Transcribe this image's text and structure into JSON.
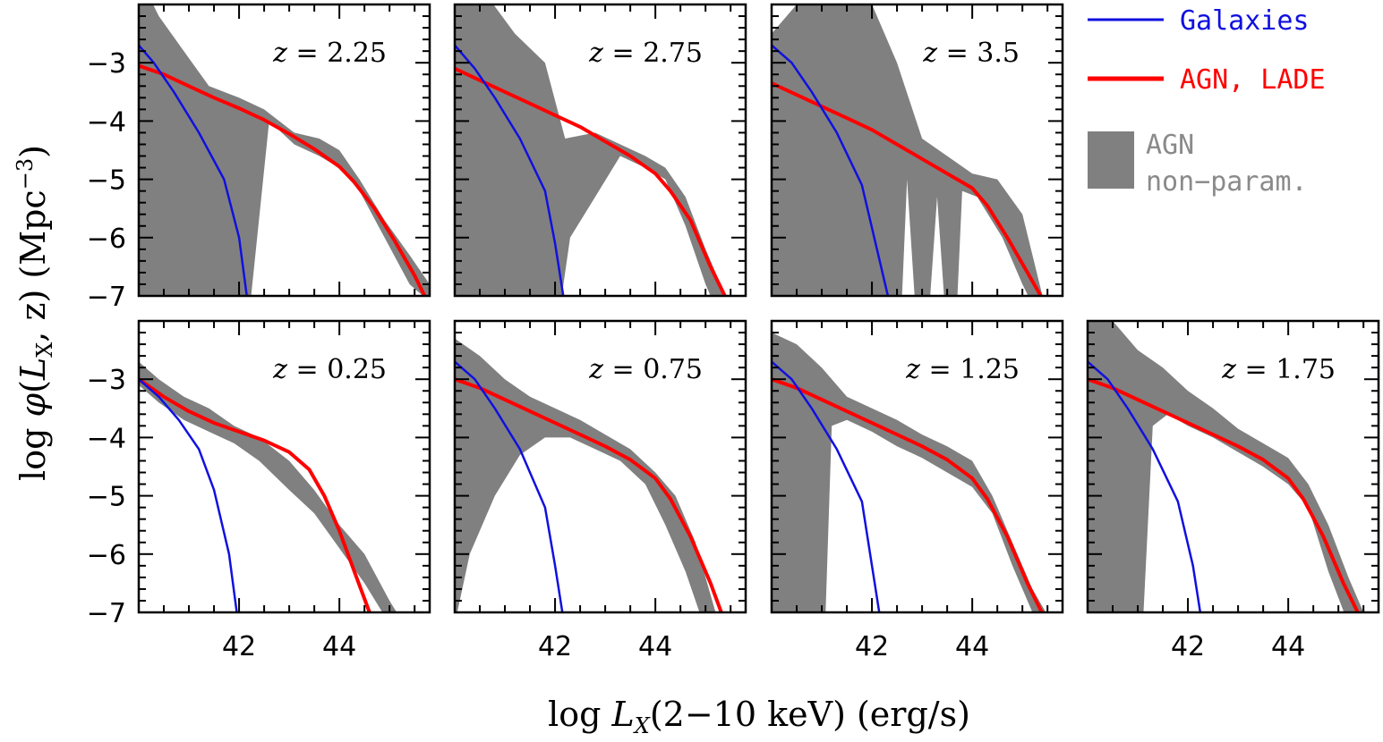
{
  "chart_data": {
    "type": "line",
    "xlabel": "log L_X(2−10 keV)  (erg/s)",
    "xlabel_parts": {
      "prefix": "log",
      "var": "L",
      "sub": "X",
      "rest": "(2−10 keV)  (erg/s)"
    },
    "ylabel": "log φ(L_X,  z)  (Mpc⁻³)",
    "ylabel_parts": {
      "prefix": "log",
      "phi": "φ",
      "open": "(",
      "var": "L",
      "sub": "X",
      "mid": ",  z)  (Mpc",
      "sup": "−3",
      "close": ")"
    },
    "xlim": [
      40.0,
      45.8
    ],
    "ylim": [
      -7,
      -2.0
    ],
    "x_ticks": [
      42,
      44
    ],
    "x_tick_labels": [
      "42",
      "44"
    ],
    "y_ticks": [
      -3,
      -4,
      -5,
      -6,
      -7
    ],
    "y_tick_labels": [
      "−3",
      "−4",
      "−5",
      "−6",
      "−7"
    ],
    "legend": [
      {
        "label": "Galaxies",
        "kind": "line",
        "color": "#1010e0"
      },
      {
        "label": "AGN, LADE",
        "kind": "line",
        "color": "#ff0000"
      },
      {
        "label_lines": [
          "AGN",
          "non−param."
        ],
        "kind": "band",
        "color": "#808080",
        "text_color": "#8a8a8a"
      }
    ],
    "panels": [
      {
        "z_label": "z = 2.25",
        "band_upper": {
          "x": [
            40.0,
            40.4,
            40.9,
            41.4,
            42.0,
            42.5,
            43.1,
            43.6,
            44.0,
            44.4,
            44.9,
            45.4,
            45.8
          ],
          "y": [
            -1.5,
            -2.2,
            -2.8,
            -3.4,
            -3.6,
            -3.8,
            -4.2,
            -4.3,
            -4.5,
            -5.0,
            -5.7,
            -6.3,
            -6.8
          ]
        },
        "band_lower": {
          "x": [
            40.0,
            40.4,
            40.9,
            41.4,
            42.0,
            42.6,
            43.1,
            43.6,
            44.0,
            44.4,
            44.9,
            45.4,
            45.8
          ],
          "y": [
            -9.0,
            -9.0,
            -9.0,
            -9.0,
            -9.0,
            -4.0,
            -4.4,
            -4.6,
            -4.8,
            -5.2,
            -6.0,
            -6.8,
            -7.1
          ]
        },
        "galaxies": {
          "x": [
            40.0,
            40.3,
            40.7,
            41.2,
            41.7,
            42.0,
            42.2
          ],
          "y": [
            -2.7,
            -3.0,
            -3.5,
            -4.2,
            -5.0,
            -6.0,
            -7.3
          ]
        },
        "agn_lade": {
          "x": [
            40.0,
            40.5,
            41.0,
            41.5,
            42.0,
            42.5,
            43.0,
            43.5,
            44.0,
            44.3,
            44.7,
            45.1,
            45.5,
            45.7
          ],
          "y": [
            -3.05,
            -3.2,
            -3.4,
            -3.6,
            -3.78,
            -3.98,
            -4.22,
            -4.48,
            -4.78,
            -5.05,
            -5.5,
            -6.05,
            -6.65,
            -7.0
          ]
        }
      },
      {
        "z_label": "z = 2.75",
        "band_upper": {
          "x": [
            40.0,
            40.6,
            41.2,
            41.8,
            42.2,
            42.8,
            43.3,
            43.8,
            44.2,
            44.6,
            45.0,
            45.4
          ],
          "y": [
            -1.0,
            -1.8,
            -2.5,
            -3.0,
            -4.3,
            -4.2,
            -4.4,
            -4.6,
            -4.8,
            -5.3,
            -6.2,
            -7.0
          ]
        },
        "band_lower": {
          "x": [
            40.0,
            40.6,
            41.2,
            41.8,
            42.3,
            42.8,
            43.3,
            43.8,
            44.2,
            44.6,
            45.0,
            45.4
          ],
          "y": [
            -9.0,
            -9.0,
            -9.0,
            -9.0,
            -6.0,
            -5.3,
            -4.6,
            -4.8,
            -5.0,
            -5.8,
            -6.8,
            -7.6
          ]
        },
        "galaxies": {
          "x": [
            40.0,
            40.4,
            40.8,
            41.3,
            41.8,
            42.0,
            42.2
          ],
          "y": [
            -2.7,
            -3.1,
            -3.6,
            -4.3,
            -5.2,
            -6.1,
            -7.2
          ]
        },
        "agn_lade": {
          "x": [
            40.0,
            40.5,
            41.0,
            41.5,
            42.0,
            42.5,
            43.0,
            43.5,
            44.0,
            44.3,
            44.7,
            45.1,
            45.5
          ],
          "y": [
            -3.1,
            -3.3,
            -3.5,
            -3.7,
            -3.9,
            -4.1,
            -4.35,
            -4.6,
            -4.9,
            -5.2,
            -5.7,
            -6.5,
            -7.2
          ]
        }
      },
      {
        "z_label": "z = 3.5",
        "band_upper": {
          "x": [
            40.0,
            40.5,
            41.0,
            41.5,
            42.0,
            42.5,
            43.0,
            43.5,
            44.0,
            44.5,
            45.0,
            45.4
          ],
          "y": [
            -2.5,
            -2.0,
            -1.5,
            -1.8,
            -2.0,
            -3.0,
            -4.3,
            -4.6,
            -4.9,
            -5.0,
            -5.6,
            -7.0
          ]
        },
        "band_lower": {
          "x": [
            40.0,
            40.5,
            41.0,
            41.5,
            42.0,
            42.5,
            42.7,
            43.0,
            43.3,
            43.6,
            43.8,
            44.1,
            44.6,
            45.0,
            45.4
          ],
          "y": [
            -9.0,
            -9.0,
            -9.0,
            -9.0,
            -9.0,
            -9.0,
            -5.0,
            -9.0,
            -5.3,
            -9.0,
            -5.2,
            -5.3,
            -6.0,
            -6.8,
            -7.5
          ]
        },
        "galaxies": {
          "x": [
            40.0,
            40.4,
            40.8,
            41.3,
            41.8,
            42.1,
            42.4
          ],
          "y": [
            -2.7,
            -3.0,
            -3.5,
            -4.2,
            -5.1,
            -6.2,
            -7.3
          ]
        },
        "agn_lade": {
          "x": [
            40.0,
            40.5,
            41.0,
            41.5,
            42.0,
            42.5,
            43.0,
            43.5,
            44.0,
            44.3,
            44.7,
            45.1,
            45.5
          ],
          "y": [
            -3.35,
            -3.55,
            -3.75,
            -3.95,
            -4.15,
            -4.4,
            -4.65,
            -4.9,
            -5.15,
            -5.45,
            -6.0,
            -6.6,
            -7.2
          ]
        }
      },
      {
        "z_label": "z = 0.25",
        "band_upper": {
          "x": [
            40.0,
            40.4,
            40.9,
            41.4,
            41.9,
            42.4,
            43.0,
            43.5,
            44.0,
            44.5,
            45.0,
            45.5
          ],
          "y": [
            -2.7,
            -3.0,
            -3.3,
            -3.5,
            -3.8,
            -4.0,
            -4.4,
            -4.9,
            -5.5,
            -6.0,
            -6.8,
            -7.5
          ]
        },
        "band_lower": {
          "x": [
            40.0,
            40.4,
            40.9,
            41.4,
            41.9,
            42.4,
            43.0,
            43.5,
            44.0,
            44.5,
            45.0,
            45.5
          ],
          "y": [
            -3.1,
            -3.4,
            -3.7,
            -3.9,
            -4.1,
            -4.4,
            -4.9,
            -5.3,
            -5.9,
            -6.5,
            -7.2,
            -7.8
          ]
        },
        "galaxies": {
          "x": [
            40.0,
            40.4,
            40.8,
            41.2,
            41.5,
            41.8,
            42.0
          ],
          "y": [
            -3.0,
            -3.3,
            -3.7,
            -4.2,
            -4.9,
            -6.0,
            -7.3
          ]
        },
        "agn_lade": {
          "x": [
            40.0,
            40.5,
            41.0,
            41.5,
            42.0,
            42.5,
            43.0,
            43.4,
            43.7,
            44.0,
            44.3,
            44.6,
            44.9
          ],
          "y": [
            -3.0,
            -3.3,
            -3.55,
            -3.75,
            -3.9,
            -4.05,
            -4.25,
            -4.55,
            -5.0,
            -5.6,
            -6.3,
            -7.0,
            -7.6
          ]
        }
      },
      {
        "z_label": "z = 0.75",
        "band_upper": {
          "x": [
            40.0,
            40.5,
            41.0,
            41.5,
            42.0,
            42.5,
            43.0,
            43.5,
            44.0,
            44.4,
            44.8,
            45.2
          ],
          "y": [
            -2.3,
            -2.6,
            -3.0,
            -3.3,
            -3.5,
            -3.7,
            -3.95,
            -4.2,
            -4.6,
            -5.0,
            -5.8,
            -7.0
          ]
        },
        "band_lower": {
          "x": [
            40.0,
            40.3,
            40.8,
            41.3,
            41.8,
            42.3,
            42.8,
            43.3,
            43.8,
            44.2,
            44.6,
            45.0,
            45.3
          ],
          "y": [
            -7.2,
            -6.0,
            -5.0,
            -4.3,
            -4.0,
            -4.0,
            -4.2,
            -4.4,
            -4.8,
            -5.5,
            -6.3,
            -7.3,
            -7.8
          ]
        },
        "galaxies": {
          "x": [
            40.0,
            40.4,
            40.8,
            41.3,
            41.8,
            42.0,
            42.2
          ],
          "y": [
            -2.7,
            -3.0,
            -3.5,
            -4.2,
            -5.2,
            -6.2,
            -7.3
          ]
        },
        "agn_lade": {
          "x": [
            40.0,
            40.5,
            41.0,
            41.5,
            42.0,
            42.5,
            43.0,
            43.5,
            44.0,
            44.3,
            44.7,
            45.1,
            45.4
          ],
          "y": [
            -3.0,
            -3.15,
            -3.35,
            -3.55,
            -3.75,
            -3.95,
            -4.15,
            -4.38,
            -4.7,
            -5.05,
            -5.7,
            -6.5,
            -7.2
          ]
        }
      },
      {
        "z_label": "z = 1.25",
        "band_upper": {
          "x": [
            40.0,
            40.5,
            41.0,
            41.5,
            42.0,
            42.5,
            43.0,
            43.5,
            44.0,
            44.4,
            44.8,
            45.2,
            45.6
          ],
          "y": [
            -2.2,
            -2.4,
            -2.8,
            -3.3,
            -3.5,
            -3.7,
            -3.95,
            -4.15,
            -4.4,
            -5.0,
            -5.8,
            -6.6,
            -7.2
          ]
        },
        "band_lower": {
          "x": [
            40.0,
            40.5,
            41.0,
            41.2,
            41.5,
            42.0,
            42.5,
            43.0,
            43.5,
            44.0,
            44.4,
            44.8,
            45.2,
            45.6
          ],
          "y": [
            -9.0,
            -9.0,
            -9.0,
            -3.8,
            -3.7,
            -3.9,
            -4.15,
            -4.35,
            -4.6,
            -4.85,
            -5.3,
            -6.2,
            -7.0,
            -7.6
          ]
        },
        "galaxies": {
          "x": [
            40.0,
            40.4,
            40.8,
            41.3,
            41.8,
            42.0,
            42.2
          ],
          "y": [
            -2.7,
            -3.0,
            -3.5,
            -4.2,
            -5.1,
            -6.2,
            -7.3
          ]
        },
        "agn_lade": {
          "x": [
            40.0,
            40.5,
            41.0,
            41.5,
            42.0,
            42.5,
            43.0,
            43.5,
            44.0,
            44.3,
            44.7,
            45.1,
            45.5
          ],
          "y": [
            -3.0,
            -3.15,
            -3.35,
            -3.55,
            -3.75,
            -3.95,
            -4.15,
            -4.38,
            -4.7,
            -5.05,
            -5.7,
            -6.5,
            -7.2
          ]
        }
      },
      {
        "z_label": "z = 1.75",
        "band_upper": {
          "x": [
            40.0,
            40.5,
            41.0,
            41.5,
            42.0,
            42.5,
            43.0,
            43.5,
            44.0,
            44.4,
            44.8,
            45.2,
            45.6
          ],
          "y": [
            -1.8,
            -2.0,
            -2.5,
            -2.8,
            -3.2,
            -3.5,
            -3.85,
            -4.1,
            -4.35,
            -4.8,
            -5.5,
            -6.4,
            -7.2
          ]
        },
        "band_lower": {
          "x": [
            40.0,
            40.5,
            41.0,
            41.3,
            41.6,
            42.0,
            42.5,
            43.0,
            43.5,
            44.0,
            44.4,
            44.8,
            45.2,
            45.6
          ],
          "y": [
            -9.0,
            -9.0,
            -9.0,
            -3.8,
            -3.6,
            -3.8,
            -4.0,
            -4.25,
            -4.5,
            -4.8,
            -5.2,
            -6.3,
            -7.2,
            -7.8
          ]
        },
        "galaxies": {
          "x": [
            40.0,
            40.4,
            40.8,
            41.3,
            41.8,
            42.1,
            42.3
          ],
          "y": [
            -2.7,
            -3.0,
            -3.5,
            -4.2,
            -5.1,
            -6.2,
            -7.3
          ]
        },
        "agn_lade": {
          "x": [
            40.0,
            40.5,
            41.0,
            41.5,
            42.0,
            42.5,
            43.0,
            43.5,
            44.0,
            44.3,
            44.7,
            45.1,
            45.5
          ],
          "y": [
            -3.0,
            -3.15,
            -3.35,
            -3.55,
            -3.75,
            -3.95,
            -4.15,
            -4.38,
            -4.7,
            -5.05,
            -5.7,
            -6.5,
            -7.2
          ]
        }
      }
    ]
  }
}
